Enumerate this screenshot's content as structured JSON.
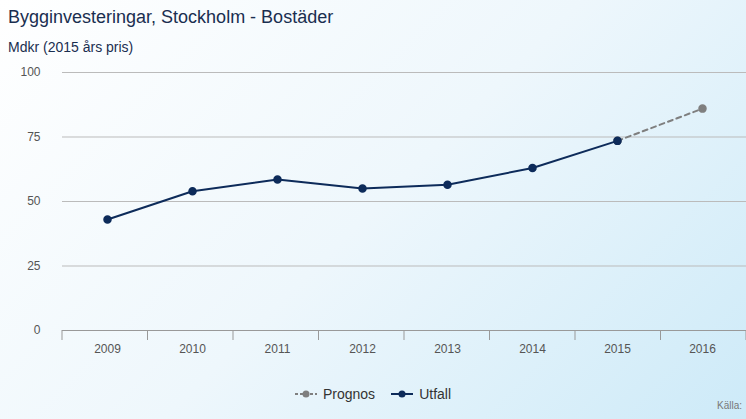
{
  "chart_data": {
    "type": "line",
    "title": "Bygginvesteringar, Stockholm - Bostäder",
    "subtitle": "Mdkr (2015 års pris)",
    "caption": "Källa:",
    "categories": [
      "2009",
      "2010",
      "2011",
      "2012",
      "2013",
      "2014",
      "2015",
      "2016"
    ],
    "series": [
      {
        "name": "Prognos",
        "color": "#7f7f7f",
        "line_style": "dashed",
        "marker": "circle",
        "values": [
          null,
          null,
          null,
          null,
          null,
          null,
          73.5,
          86
        ]
      },
      {
        "name": "Utfall",
        "color": "#0d2b5a",
        "line_style": "solid",
        "marker": "circle",
        "values": [
          43,
          54,
          58.5,
          55,
          56.5,
          63,
          73.5,
          null
        ]
      }
    ],
    "ylim": [
      0,
      100
    ],
    "yticks": [
      0,
      25,
      50,
      75,
      100
    ],
    "grid": true,
    "legend": "bottom"
  }
}
